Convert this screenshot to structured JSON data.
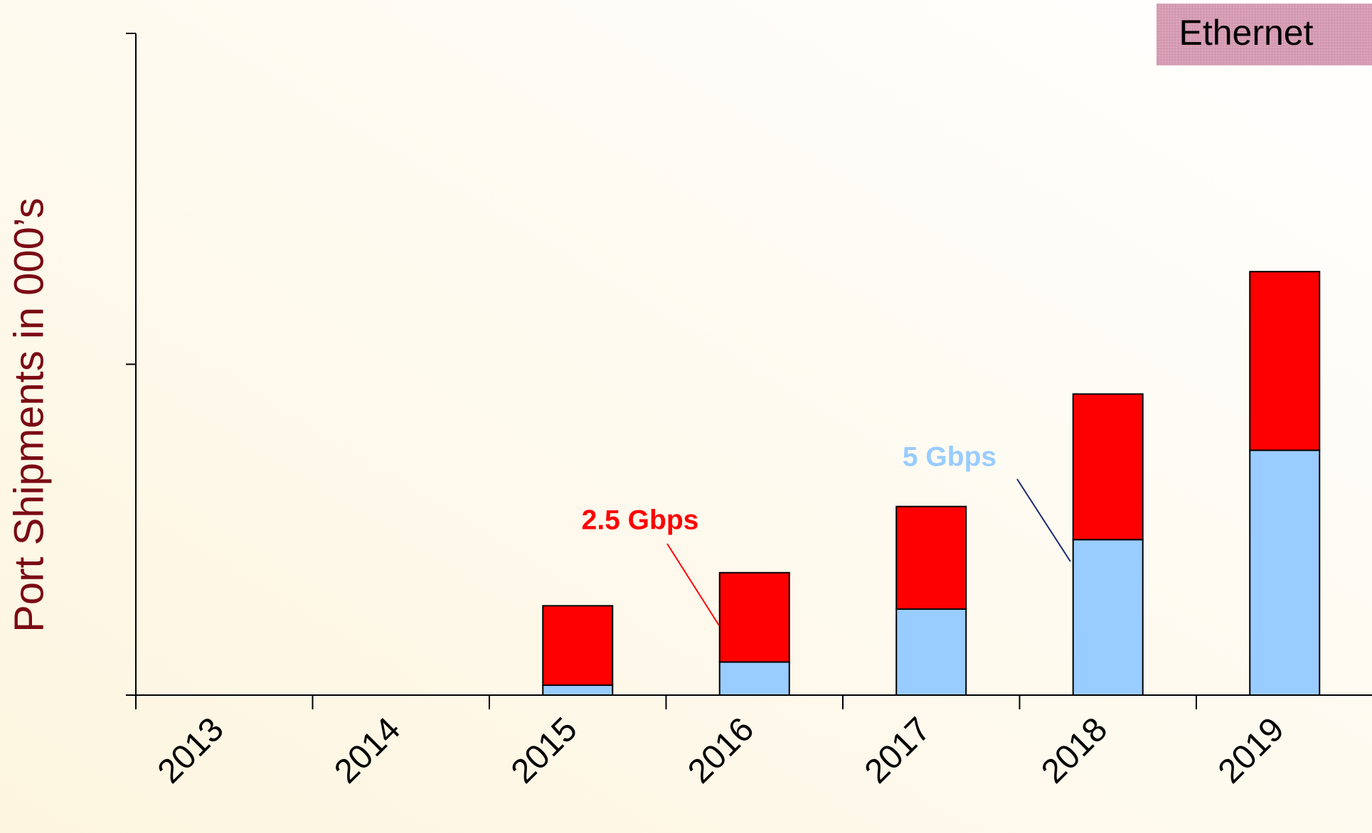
{
  "chart_data": {
    "type": "stacked_bar",
    "title": "Ethernet",
    "y_label": "Port Shipments in 000’s",
    "categories": [
      "2013",
      "2014",
      "2015",
      "2016",
      "2017",
      "2018",
      "2019"
    ],
    "series": [
      {
        "name": "5 Gbps",
        "color": "#99ccff",
        "values": [
          0,
          0,
          0.03,
          0.1,
          0.26,
          0.47,
          0.74
        ]
      },
      {
        "name": "2.5 Gbps",
        "color": "#ff0000",
        "values": [
          0,
          0,
          0.24,
          0.27,
          0.31,
          0.44,
          0.54
        ]
      }
    ],
    "ylim": [
      0,
      2
    ],
    "yticks": [
      0,
      1,
      2
    ],
    "grid": false
  }
}
